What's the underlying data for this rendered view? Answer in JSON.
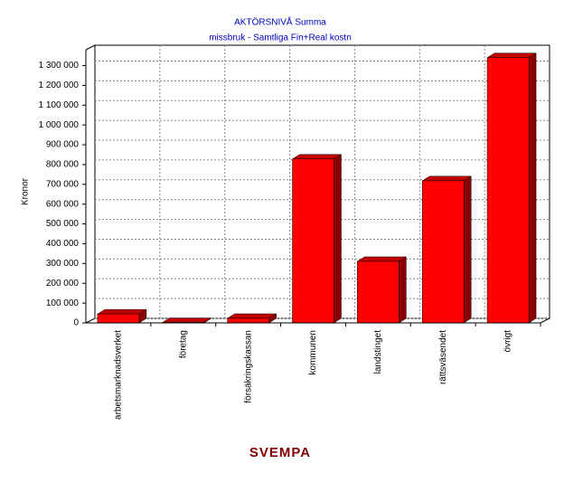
{
  "chart_data": {
    "type": "bar",
    "title": "AKTÖRSNIVÅ  Summa",
    "subtitle": "missbruk - Samtliga Fin+Real kostn",
    "y_label": "Kronor",
    "x_label": "SVEMPA",
    "categories": [
      "arbetsmarknadsverket",
      "företag",
      "försäkringskassan",
      "kommunen",
      "landstinget",
      "rättsväsendet",
      "övrigt"
    ],
    "values": [
      45000,
      2000,
      23000,
      828000,
      311000,
      718000,
      1340000
    ],
    "color": "#ff0000",
    "ylim": [
      0,
      1380000
    ],
    "yticks": [
      0,
      {
        "value": 100000,
        "label": "100 000"
      },
      {
        "value": 200000,
        "label": "200 000"
      },
      {
        "value": 300000,
        "label": "300 000"
      },
      {
        "value": 400000,
        "label": "400 000"
      },
      {
        "value": 500000,
        "label": "500 000"
      },
      {
        "value": 600000,
        "label": "600 000"
      },
      {
        "value": 700000,
        "label": "700 000"
      },
      {
        "value": 800000,
        "label": "800 000"
      },
      {
        "value": 900000,
        "label": "900 000"
      },
      {
        "value": 1000000,
        "label": "1 000 000"
      },
      {
        "value": 1100000,
        "label": "1 100 000"
      },
      {
        "value": 1200000,
        "label": "1 200 000"
      },
      {
        "value": 1300000,
        "label": "1 300 000"
      }
    ],
    "grid": true
  }
}
